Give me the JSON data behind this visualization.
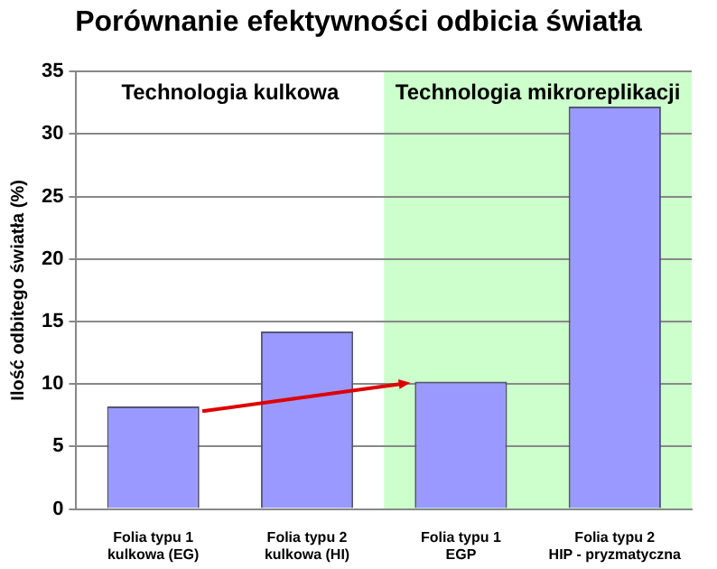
{
  "chart_data": {
    "type": "bar",
    "title": "Porównanie efektywności odbicia światła",
    "ylabel": "Ilość odbitego światła (%)",
    "categories": [
      "Folia typu 1\nkulkowa (EG)",
      "Folia typu 2\nkulkowa (HI)",
      "Folia typu 1\nEGP",
      "Folia typu 2\nHIP - pryzmatyczna"
    ],
    "values": [
      8.2,
      14.2,
      10.2,
      32.2
    ],
    "color": "#9999ff",
    "ylim": [
      0,
      35
    ],
    "yticks": [
      0,
      5,
      10,
      15,
      20,
      25,
      30,
      35
    ],
    "grid": "y",
    "legend": false,
    "annotations": [
      "Technologia kulkowa"
    ],
    "bands": [
      {
        "axis": "x",
        "from": "Folia typu 1\nEGP",
        "to": "Folia typu 2\nHIP - pryzmatyczna",
        "label": "Technologia mikroreplikacji",
        "color": "#ccffcc"
      }
    ]
  }
}
